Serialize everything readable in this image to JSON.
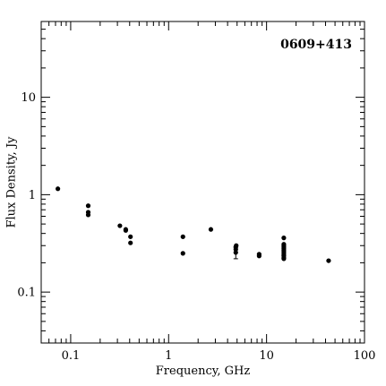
{
  "chart_data": {
    "type": "scatter",
    "title": "0609+413",
    "xlabel": "Frequency, GHz",
    "ylabel": "Flux Density, Jy",
    "xscale": "log",
    "yscale": "log",
    "xlim": [
      0.05,
      100
    ],
    "ylim": [
      0.03,
      60
    ],
    "x_ticks": [
      0.1,
      1,
      10,
      100
    ],
    "x_tick_labels": [
      "0.1",
      "1",
      "10",
      "100"
    ],
    "y_ticks": [
      0.1,
      1,
      10
    ],
    "y_tick_labels": [
      "0.1",
      "1",
      "10"
    ],
    "grid": false,
    "legend": "none",
    "marker_color": "#000000",
    "points": [
      {
        "x": 0.074,
        "y": 1.15
      },
      {
        "x": 0.151,
        "y": 0.77
      },
      {
        "x": 0.151,
        "y": 0.66
      },
      {
        "x": 0.151,
        "y": 0.62
      },
      {
        "x": 0.318,
        "y": 0.48
      },
      {
        "x": 0.365,
        "y": 0.44
      },
      {
        "x": 0.365,
        "y": 0.43
      },
      {
        "x": 0.408,
        "y": 0.37
      },
      {
        "x": 0.408,
        "y": 0.32
      },
      {
        "x": 1.4,
        "y": 0.37
      },
      {
        "x": 1.4,
        "y": 0.25
      },
      {
        "x": 2.7,
        "y": 0.44
      },
      {
        "x": 4.85,
        "y": 0.29
      },
      {
        "x": 4.85,
        "y": 0.275
      },
      {
        "x": 4.85,
        "y": 0.255,
        "err": 0.035
      },
      {
        "x": 4.9,
        "y": 0.3
      },
      {
        "x": 8.4,
        "y": 0.245
      },
      {
        "x": 8.4,
        "y": 0.235
      },
      {
        "x": 15,
        "y": 0.36
      },
      {
        "x": 15,
        "y": 0.31
      },
      {
        "x": 15,
        "y": 0.3
      },
      {
        "x": 15,
        "y": 0.29
      },
      {
        "x": 15,
        "y": 0.28
      },
      {
        "x": 15,
        "y": 0.27
      },
      {
        "x": 15,
        "y": 0.26
      },
      {
        "x": 15,
        "y": 0.25
      },
      {
        "x": 15,
        "y": 0.24
      },
      {
        "x": 15,
        "y": 0.235
      },
      {
        "x": 15,
        "y": 0.225
      },
      {
        "x": 15,
        "y": 0.22
      },
      {
        "x": 43,
        "y": 0.21
      }
    ]
  }
}
